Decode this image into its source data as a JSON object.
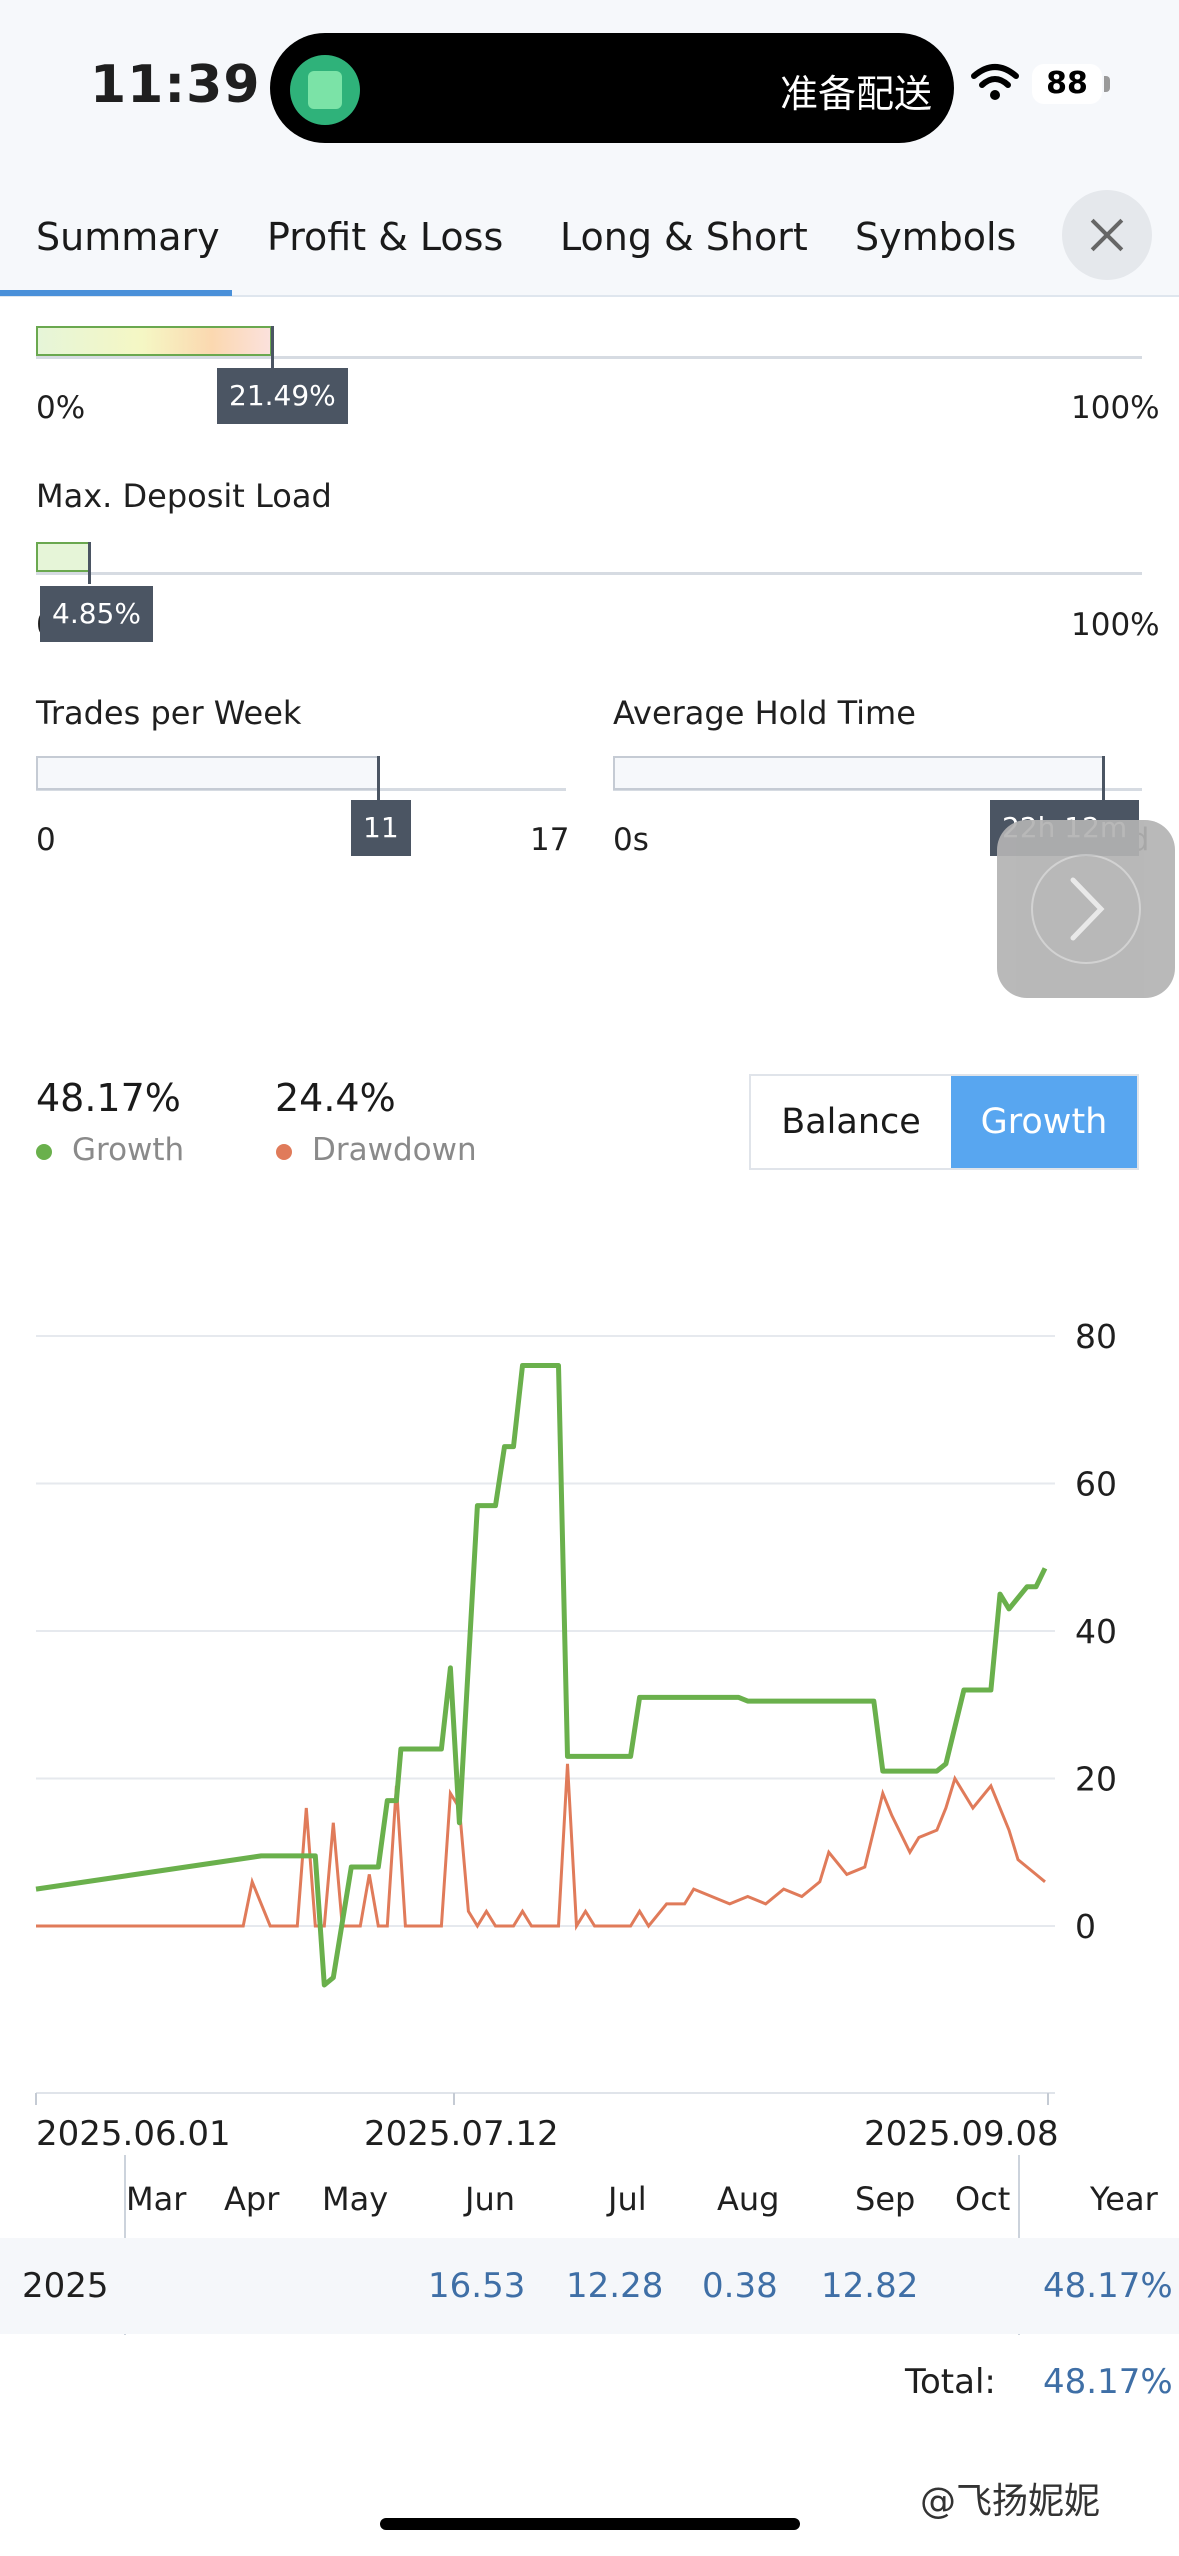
{
  "status_bar": {
    "time": "11:39",
    "island_text": "准备配送",
    "battery": "88"
  },
  "tabs": [
    "Summary",
    "Profit & Loss",
    "Long & Short",
    "Symbols"
  ],
  "bars": {
    "top_bar": {
      "value_label": "21.49%",
      "min_label": "0%",
      "max_label": "100%",
      "fraction": 0.2149
    },
    "max_deposit_load": {
      "title": "Max. Deposit Load",
      "value_label": "4.85%",
      "min_label": "0",
      "max_label": "100%",
      "fraction": 0.0485
    },
    "trades_per_week": {
      "title": "Trades per Week",
      "value_label": "11",
      "min_label": "0",
      "max_label": "17",
      "fraction": 0.647
    },
    "average_hold_time": {
      "title": "Average Hold Time",
      "value_label": "22h 12m",
      "min_label": "0s",
      "max_label": "1d",
      "fraction": 0.925
    }
  },
  "stats": {
    "growth": {
      "value": "48.17%",
      "label": "Growth",
      "color": "#6ab04c"
    },
    "drawdown": {
      "value": "24.4%",
      "label": "Drawdown",
      "color": "#e07b5a"
    }
  },
  "toggle": {
    "balance": "Balance",
    "growth": "Growth"
  },
  "chart_data": {
    "type": "line",
    "y_ticks": [
      "80",
      "60",
      "40",
      "20",
      "0"
    ],
    "ylim": [
      -15,
      80
    ],
    "x_ticks": [
      "2025.06.01",
      "2025.07.12",
      "2025.09.08"
    ],
    "series": [
      {
        "name": "Growth",
        "color": "#6ab04c",
        "points": [
          [
            0,
            5
          ],
          [
            25,
            9.5
          ],
          [
            31,
            9.5
          ],
          [
            32,
            -8
          ],
          [
            33,
            -7
          ],
          [
            35,
            8
          ],
          [
            38,
            8
          ],
          [
            39,
            17
          ],
          [
            40,
            17
          ],
          [
            40.5,
            24
          ],
          [
            45,
            24
          ],
          [
            46,
            35
          ],
          [
            47,
            14
          ],
          [
            49,
            57
          ],
          [
            51,
            57
          ],
          [
            52,
            65
          ],
          [
            53,
            65
          ],
          [
            54,
            76
          ],
          [
            58,
            76
          ],
          [
            59,
            23
          ],
          [
            60,
            23
          ],
          [
            66,
            23
          ],
          [
            67,
            31
          ],
          [
            78,
            31
          ],
          [
            79,
            30.5
          ],
          [
            93,
            30.5
          ],
          [
            94,
            21
          ],
          [
            100,
            21
          ],
          [
            101,
            22
          ],
          [
            103,
            32
          ],
          [
            106,
            32
          ],
          [
            107,
            45
          ],
          [
            108,
            43
          ],
          [
            110,
            46
          ],
          [
            111,
            46
          ],
          [
            112,
            48.5
          ]
        ]
      },
      {
        "name": "Drawdown",
        "color": "#e07b5a",
        "points": [
          [
            0,
            0
          ],
          [
            23,
            0
          ],
          [
            24,
            6
          ],
          [
            26,
            0
          ],
          [
            29,
            0
          ],
          [
            30,
            16
          ],
          [
            31,
            0
          ],
          [
            32,
            0
          ],
          [
            33,
            14
          ],
          [
            34,
            0
          ],
          [
            36,
            0
          ],
          [
            37,
            7
          ],
          [
            38,
            0
          ],
          [
            39,
            0
          ],
          [
            40,
            19
          ],
          [
            41,
            0
          ],
          [
            45,
            0
          ],
          [
            46,
            18
          ],
          [
            47,
            16
          ],
          [
            48,
            2
          ],
          [
            49,
            0
          ],
          [
            50,
            2
          ],
          [
            51,
            0
          ],
          [
            53,
            0
          ],
          [
            54,
            2
          ],
          [
            55,
            0
          ],
          [
            58,
            0
          ],
          [
            59,
            22
          ],
          [
            60,
            0
          ],
          [
            61,
            2
          ],
          [
            62,
            0
          ],
          [
            66,
            0
          ],
          [
            67,
            2
          ],
          [
            68,
            0
          ],
          [
            70,
            3
          ],
          [
            72,
            3
          ],
          [
            73,
            5
          ],
          [
            75,
            4
          ],
          [
            77,
            3
          ],
          [
            79,
            4
          ],
          [
            81,
            3
          ],
          [
            83,
            5
          ],
          [
            85,
            4
          ],
          [
            87,
            6
          ],
          [
            88,
            10
          ],
          [
            90,
            7
          ],
          [
            92,
            8
          ],
          [
            94,
            18
          ],
          [
            95,
            15
          ],
          [
            97,
            10
          ],
          [
            98,
            12
          ],
          [
            100,
            13
          ],
          [
            101,
            16
          ],
          [
            102,
            20
          ],
          [
            104,
            16
          ],
          [
            106,
            19
          ],
          [
            108,
            13
          ],
          [
            109,
            9
          ],
          [
            110,
            8
          ],
          [
            111,
            7
          ],
          [
            112,
            6
          ]
        ]
      }
    ]
  },
  "table": {
    "months": [
      "Mar",
      "Apr",
      "May",
      "Jun",
      "Jul",
      "Aug",
      "Sep",
      "Oct",
      "Year"
    ],
    "row": {
      "year": "2025",
      "jun": "16.53",
      "jul": "12.28",
      "aug": "0.38",
      "sep": "12.82",
      "total": "48.17%"
    },
    "total_label": "Total:",
    "total_value": "48.17%"
  },
  "watermark": "@飞扬妮妮"
}
